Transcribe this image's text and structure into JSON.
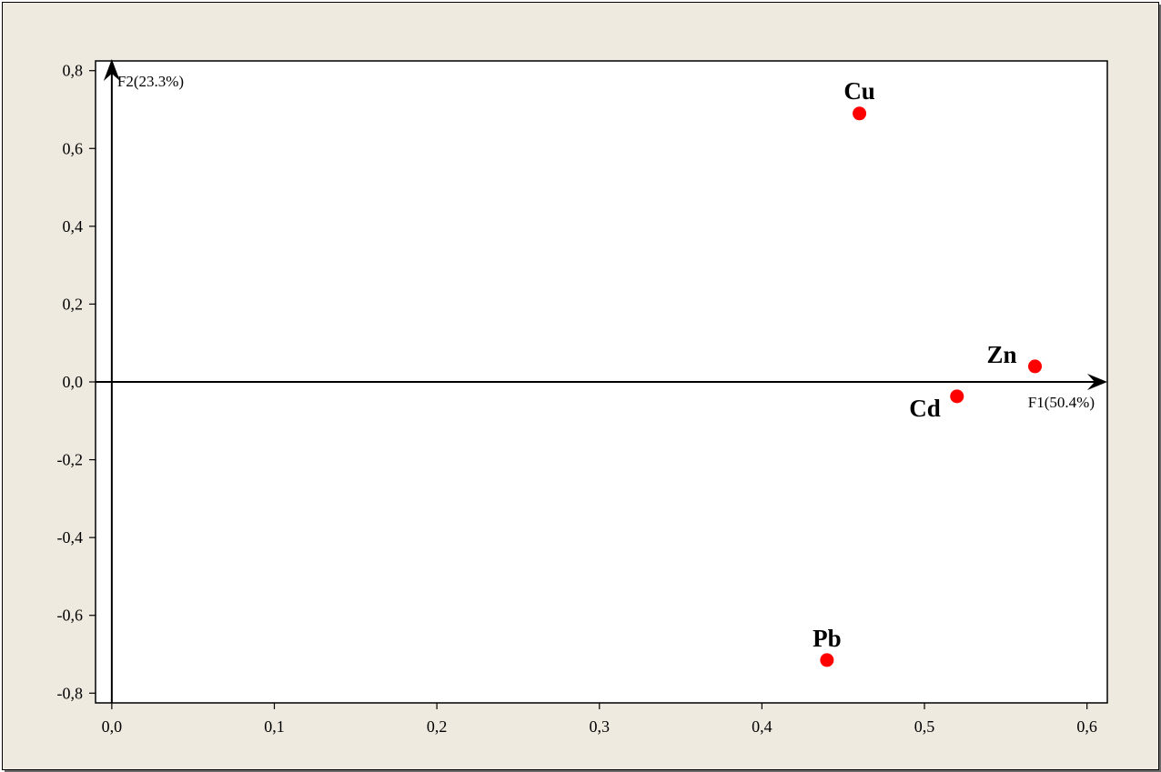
{
  "chart_data": {
    "type": "scatter",
    "title": "",
    "xlabel": "F1(50.4%)",
    "ylabel": "F2(23.3%)",
    "xlim": [
      -0.01,
      0.6125
    ],
    "ylim": [
      -0.825,
      0.825
    ],
    "xticks": [
      "0,0",
      "0,1",
      "0,2",
      "0,3",
      "0,4",
      "0,5",
      "0,6"
    ],
    "xtick_values": [
      0.0,
      0.1,
      0.2,
      0.3,
      0.4,
      0.5,
      0.6
    ],
    "yticks": [
      "0,8",
      "0,6",
      "0,4",
      "0,2",
      "0,0",
      "-0,2",
      "-0,4",
      "-0,6",
      "-0,8"
    ],
    "ytick_values": [
      0.8,
      0.6,
      0.4,
      0.2,
      0.0,
      -0.2,
      -0.4,
      -0.6,
      -0.8
    ],
    "grid": false,
    "marker_color": "#ff0000",
    "points": [
      {
        "label": "Cu",
        "x": 0.46,
        "y": 0.69
      },
      {
        "label": "Zn",
        "x": 0.568,
        "y": 0.04
      },
      {
        "label": "Cd",
        "x": 0.52,
        "y": -0.037
      },
      {
        "label": "Pb",
        "x": 0.44,
        "y": -0.715
      }
    ]
  }
}
